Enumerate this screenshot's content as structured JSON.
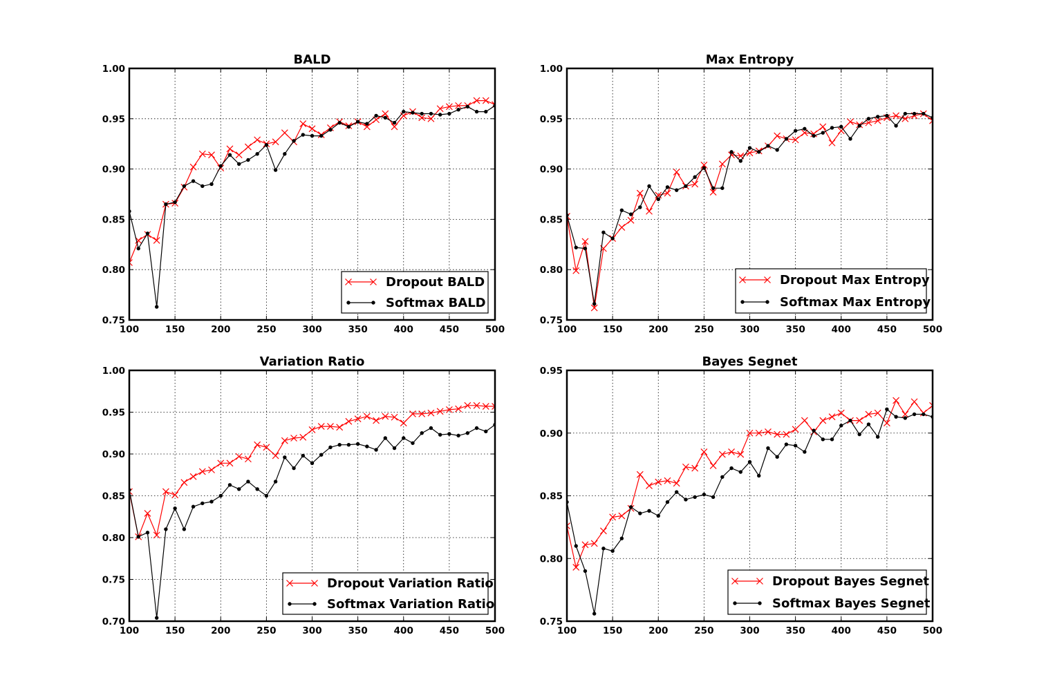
{
  "figure": {
    "colors": {
      "dropout": "#ff0000",
      "softmax": "#000000"
    }
  },
  "chart_data": [
    {
      "type": "line",
      "title": "BALD",
      "xlabel": "",
      "ylabel": "",
      "xlim": [
        100,
        500
      ],
      "ylim": [
        0.75,
        1.0
      ],
      "xticks": [
        100,
        150,
        200,
        250,
        300,
        350,
        400,
        450,
        500
      ],
      "yticks": [
        0.75,
        0.8,
        0.85,
        0.9,
        0.95,
        1.0
      ],
      "grid": true,
      "legend_position": "lower-right",
      "x": [
        100,
        110,
        120,
        130,
        140,
        150,
        160,
        170,
        180,
        190,
        200,
        210,
        220,
        230,
        240,
        250,
        260,
        270,
        280,
        290,
        300,
        310,
        320,
        330,
        340,
        350,
        360,
        370,
        380,
        390,
        400,
        410,
        420,
        430,
        440,
        450,
        460,
        470,
        480,
        490,
        500
      ],
      "series": [
        {
          "name": "Dropout BALD",
          "color": "#ff0000",
          "marker": "x",
          "values": [
            0.807,
            0.829,
            0.835,
            0.829,
            0.865,
            0.866,
            0.882,
            0.902,
            0.915,
            0.914,
            0.901,
            0.92,
            0.914,
            0.922,
            0.929,
            0.925,
            0.927,
            0.936,
            0.927,
            0.945,
            0.94,
            0.934,
            0.941,
            0.947,
            0.943,
            0.947,
            0.942,
            0.949,
            0.955,
            0.942,
            0.953,
            0.957,
            0.951,
            0.95,
            0.96,
            0.962,
            0.963,
            0.963,
            0.968,
            0.968,
            0.964
          ]
        },
        {
          "name": "Softmax BALD",
          "color": "#000000",
          "marker": "o",
          "values": [
            0.858,
            0.821,
            0.836,
            0.763,
            0.865,
            0.867,
            0.883,
            0.888,
            0.883,
            0.885,
            0.903,
            0.914,
            0.905,
            0.909,
            0.915,
            0.924,
            0.899,
            0.915,
            0.928,
            0.934,
            0.933,
            0.933,
            0.939,
            0.946,
            0.942,
            0.947,
            0.945,
            0.953,
            0.951,
            0.946,
            0.957,
            0.956,
            0.955,
            0.955,
            0.954,
            0.955,
            0.959,
            0.962,
            0.957,
            0.957,
            0.963
          ]
        }
      ]
    },
    {
      "type": "line",
      "title": "Max Entropy",
      "xlabel": "",
      "ylabel": "",
      "xlim": [
        100,
        500
      ],
      "ylim": [
        0.75,
        1.0
      ],
      "xticks": [
        100,
        150,
        200,
        250,
        300,
        350,
        400,
        450,
        500
      ],
      "yticks": [
        0.75,
        0.8,
        0.85,
        0.9,
        0.95,
        1.0
      ],
      "grid": true,
      "legend_position": "lower-right",
      "x": [
        100,
        110,
        120,
        130,
        140,
        150,
        160,
        170,
        180,
        190,
        200,
        210,
        220,
        230,
        240,
        250,
        260,
        270,
        280,
        290,
        300,
        310,
        320,
        330,
        340,
        350,
        360,
        370,
        380,
        390,
        400,
        410,
        420,
        430,
        440,
        450,
        460,
        470,
        480,
        490,
        500
      ],
      "series": [
        {
          "name": "Dropout Max Entropy",
          "color": "#ff0000",
          "marker": "x",
          "values": [
            0.853,
            0.799,
            0.828,
            0.762,
            0.821,
            0.831,
            0.842,
            0.849,
            0.876,
            0.858,
            0.874,
            0.876,
            0.897,
            0.883,
            0.885,
            0.904,
            0.877,
            0.905,
            0.914,
            0.913,
            0.916,
            0.918,
            0.923,
            0.933,
            0.93,
            0.929,
            0.936,
            0.935,
            0.942,
            0.926,
            0.938,
            0.947,
            0.944,
            0.946,
            0.948,
            0.951,
            0.953,
            0.95,
            0.953,
            0.955,
            0.948
          ]
        },
        {
          "name": "Softmax Max Entropy",
          "color": "#000000",
          "marker": "o",
          "values": [
            0.854,
            0.822,
            0.821,
            0.766,
            0.837,
            0.831,
            0.859,
            0.855,
            0.862,
            0.883,
            0.87,
            0.882,
            0.879,
            0.883,
            0.892,
            0.901,
            0.881,
            0.881,
            0.917,
            0.908,
            0.921,
            0.917,
            0.923,
            0.919,
            0.93,
            0.938,
            0.94,
            0.933,
            0.936,
            0.941,
            0.942,
            0.93,
            0.943,
            0.95,
            0.952,
            0.953,
            0.943,
            0.955,
            0.955,
            0.955,
            0.951
          ]
        }
      ]
    },
    {
      "type": "line",
      "title": "Variation Ratio",
      "xlabel": "",
      "ylabel": "",
      "xlim": [
        100,
        500
      ],
      "ylim": [
        0.7,
        1.0
      ],
      "xticks": [
        100,
        150,
        200,
        250,
        300,
        350,
        400,
        450,
        500
      ],
      "yticks": [
        0.7,
        0.75,
        0.8,
        0.85,
        0.9,
        0.95,
        1.0
      ],
      "grid": true,
      "legend_position": "lower-right",
      "x": [
        100,
        110,
        120,
        130,
        140,
        150,
        160,
        170,
        180,
        190,
        200,
        210,
        220,
        230,
        240,
        250,
        260,
        270,
        280,
        290,
        300,
        310,
        320,
        330,
        340,
        350,
        360,
        370,
        380,
        390,
        400,
        410,
        420,
        430,
        440,
        450,
        460,
        470,
        480,
        490,
        500
      ],
      "series": [
        {
          "name": "Dropout Variation Ratio",
          "color": "#ff0000",
          "marker": "x",
          "values": [
            0.855,
            0.801,
            0.829,
            0.803,
            0.855,
            0.851,
            0.866,
            0.873,
            0.879,
            0.881,
            0.889,
            0.889,
            0.897,
            0.894,
            0.911,
            0.908,
            0.898,
            0.916,
            0.919,
            0.92,
            0.929,
            0.933,
            0.933,
            0.932,
            0.939,
            0.942,
            0.945,
            0.94,
            0.945,
            0.944,
            0.937,
            0.948,
            0.948,
            0.949,
            0.951,
            0.953,
            0.954,
            0.958,
            0.958,
            0.957,
            0.957
          ]
        },
        {
          "name": "Softmax Variation Ratio",
          "color": "#000000",
          "marker": "o",
          "values": [
            0.857,
            0.801,
            0.806,
            0.704,
            0.81,
            0.835,
            0.81,
            0.837,
            0.841,
            0.843,
            0.85,
            0.863,
            0.858,
            0.867,
            0.858,
            0.85,
            0.867,
            0.896,
            0.883,
            0.898,
            0.889,
            0.899,
            0.908,
            0.911,
            0.911,
            0.912,
            0.909,
            0.905,
            0.919,
            0.907,
            0.919,
            0.913,
            0.925,
            0.931,
            0.923,
            0.924,
            0.922,
            0.925,
            0.931,
            0.927,
            0.935
          ]
        }
      ]
    },
    {
      "type": "line",
      "title": "Bayes Segnet",
      "xlabel": "",
      "ylabel": "",
      "xlim": [
        100,
        500
      ],
      "ylim": [
        0.75,
        0.95
      ],
      "xticks": [
        100,
        150,
        200,
        250,
        300,
        350,
        400,
        450,
        500
      ],
      "yticks": [
        0.75,
        0.8,
        0.85,
        0.9,
        0.95
      ],
      "grid": true,
      "legend_position": "lower-right",
      "x": [
        100,
        110,
        120,
        130,
        140,
        150,
        160,
        170,
        180,
        190,
        200,
        210,
        220,
        230,
        240,
        250,
        260,
        270,
        280,
        290,
        300,
        310,
        320,
        330,
        340,
        350,
        360,
        370,
        380,
        390,
        400,
        410,
        420,
        430,
        440,
        450,
        460,
        470,
        480,
        490,
        500
      ],
      "series": [
        {
          "name": "Dropout Bayes Segnet",
          "color": "#ff0000",
          "marker": "x",
          "values": [
            0.826,
            0.793,
            0.811,
            0.812,
            0.822,
            0.833,
            0.834,
            0.84,
            0.867,
            0.858,
            0.861,
            0.862,
            0.86,
            0.873,
            0.872,
            0.885,
            0.874,
            0.883,
            0.885,
            0.883,
            0.9,
            0.9,
            0.901,
            0.899,
            0.899,
            0.903,
            0.91,
            0.901,
            0.91,
            0.913,
            0.916,
            0.91,
            0.91,
            0.915,
            0.916,
            0.908,
            0.926,
            0.915,
            0.925,
            0.916,
            0.922
          ]
        },
        {
          "name": "Softmax Bayes Segnet",
          "color": "#000000",
          "marker": "o",
          "values": [
            0.845,
            0.81,
            0.79,
            0.756,
            0.808,
            0.806,
            0.816,
            0.841,
            0.836,
            0.838,
            0.834,
            0.845,
            0.853,
            0.847,
            0.849,
            0.851,
            0.849,
            0.865,
            0.872,
            0.869,
            0.877,
            0.866,
            0.888,
            0.881,
            0.891,
            0.89,
            0.885,
            0.902,
            0.895,
            0.895,
            0.906,
            0.91,
            0.899,
            0.907,
            0.897,
            0.919,
            0.913,
            0.912,
            0.915,
            0.915,
            0.913
          ]
        }
      ]
    }
  ]
}
